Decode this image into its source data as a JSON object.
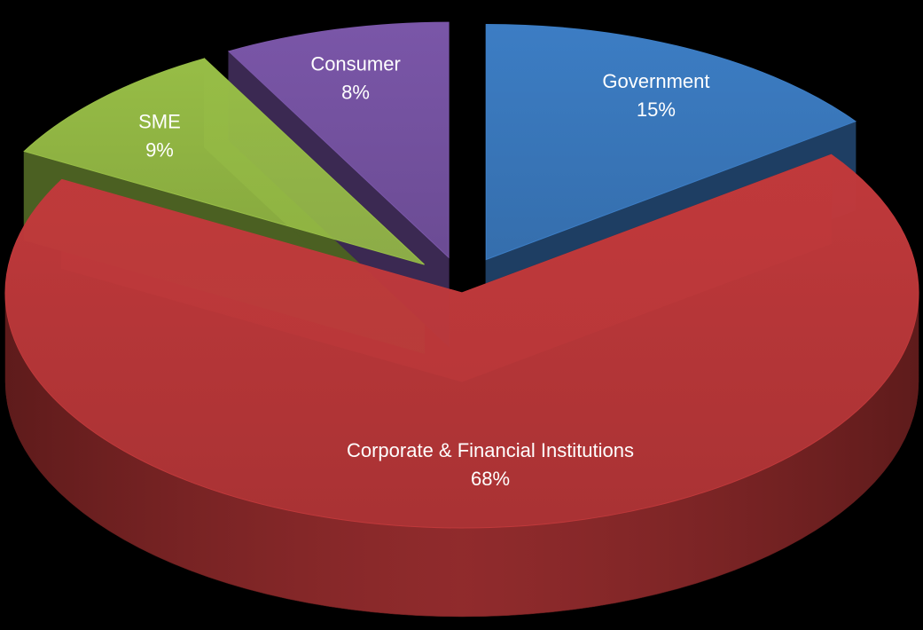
{
  "chart_data": {
    "type": "pie",
    "style": "3d-exploded",
    "slices": [
      {
        "name": "Government",
        "value": 15,
        "label": "15%",
        "color": "#3c7dc4",
        "side_color": "#1e3e63"
      },
      {
        "name": "Corporate & Financial Institutions",
        "value": 68,
        "label": "68%",
        "color": "#c0393b",
        "side_color": "#5e1b1b"
      },
      {
        "name": "SME",
        "value": 9,
        "label": "9%",
        "color": "#97bd46",
        "side_color": "#4b6022"
      },
      {
        "name": "Consumer",
        "value": 8,
        "label": "8%",
        "color": "#7a56a8",
        "side_color": "#3b2952"
      }
    ]
  }
}
